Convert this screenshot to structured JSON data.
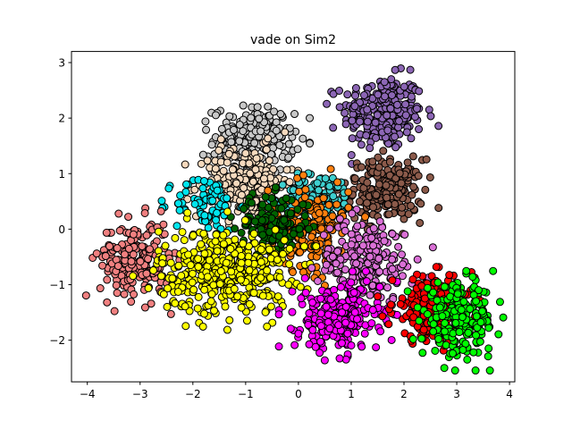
{
  "chart_data": {
    "type": "scatter",
    "title": "vade on Sim2",
    "xlabel": "",
    "ylabel": "",
    "xlim": [
      -4.3,
      4.1
    ],
    "ylim": [
      -2.75,
      3.2
    ],
    "xticks": [
      -4,
      -3,
      -2,
      -1,
      0,
      1,
      2,
      3,
      4
    ],
    "yticks": [
      -2,
      -1,
      0,
      1,
      2,
      3
    ],
    "grid": false,
    "legend": "none",
    "clusters": [
      {
        "color": "#8c66b5",
        "center": [
          1.6,
          2.1
        ],
        "spread": [
          0.38,
          0.33
        ],
        "count": 260
      },
      {
        "color": "#8b5a4a",
        "center": [
          1.65,
          0.7
        ],
        "spread": [
          0.36,
          0.28
        ],
        "count": 220
      },
      {
        "color": "#c8c8c8",
        "center": [
          -0.85,
          1.6
        ],
        "spread": [
          0.38,
          0.3
        ],
        "count": 220
      },
      {
        "color": "#f5d9bd",
        "center": [
          -1.0,
          0.85
        ],
        "spread": [
          0.45,
          0.32
        ],
        "count": 220
      },
      {
        "color": "#00e5ee",
        "center": [
          -1.75,
          0.45
        ],
        "spread": [
          0.3,
          0.25
        ],
        "count": 80
      },
      {
        "color": "#3ecfcf",
        "center": [
          0.4,
          0.55
        ],
        "spread": [
          0.35,
          0.22
        ],
        "count": 130
      },
      {
        "color": "#ff7f0e",
        "center": [
          0.2,
          0.05
        ],
        "spread": [
          0.38,
          0.4
        ],
        "count": 170
      },
      {
        "color": "#006400",
        "center": [
          -0.5,
          0.05
        ],
        "spread": [
          0.35,
          0.28
        ],
        "count": 150
      },
      {
        "color": "#f08080",
        "center": [
          -3.1,
          -0.55
        ],
        "spread": [
          0.33,
          0.35
        ],
        "count": 210
      },
      {
        "color": "#ffff00",
        "center": [
          -1.4,
          -0.75
        ],
        "spread": [
          0.62,
          0.38
        ],
        "count": 420
      },
      {
        "color": "#da70d6",
        "center": [
          1.3,
          -0.55
        ],
        "spread": [
          0.45,
          0.38
        ],
        "count": 200
      },
      {
        "color": "#ff00ff",
        "center": [
          0.75,
          -1.6
        ],
        "spread": [
          0.4,
          0.3
        ],
        "count": 260
      },
      {
        "color": "#ff0000",
        "center": [
          2.55,
          -1.45
        ],
        "spread": [
          0.38,
          0.3
        ],
        "count": 240
      },
      {
        "color": "#00ff00",
        "center": [
          3.05,
          -1.65
        ],
        "spread": [
          0.35,
          0.32
        ],
        "count": 220
      }
    ]
  }
}
